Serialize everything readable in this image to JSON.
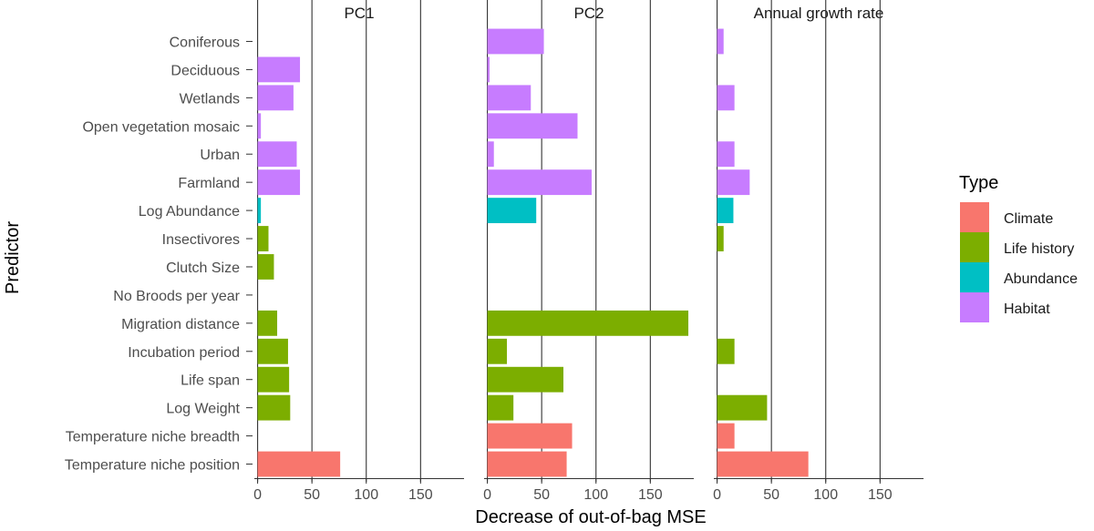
{
  "chart_data": {
    "type": "bar",
    "orientation": "horizontal",
    "facets": [
      "PC1",
      "PC2",
      "Annual growth rate"
    ],
    "xlabel": "Decrease of out-of-bag MSE",
    "ylabel": "Predictor",
    "xlim": [
      -3,
      190
    ],
    "xticks": [
      0,
      50,
      100,
      150
    ],
    "xtick_labels": [
      "0",
      "50",
      "100",
      "150"
    ],
    "legend": {
      "title": "Type",
      "placement": "right",
      "entries": [
        {
          "name": "Climate",
          "color": "#F8766D"
        },
        {
          "name": "Life history",
          "color": "#7CAE00"
        },
        {
          "name": "Abundance",
          "color": "#00BFC4"
        },
        {
          "name": "Habitat",
          "color": "#C77CFF"
        }
      ]
    },
    "predictors": [
      {
        "name": "Coniferous",
        "type": "Habitat"
      },
      {
        "name": "Deciduous",
        "type": "Habitat"
      },
      {
        "name": "Wetlands",
        "type": "Habitat"
      },
      {
        "name": "Open vegetation mosaic",
        "type": "Habitat"
      },
      {
        "name": "Urban",
        "type": "Habitat"
      },
      {
        "name": "Farmland",
        "type": "Habitat"
      },
      {
        "name": "Log Abundance",
        "type": "Abundance"
      },
      {
        "name": "Insectivores",
        "type": "Life history"
      },
      {
        "name": "Clutch Size",
        "type": "Life history"
      },
      {
        "name": "No Broods per year",
        "type": "Life history"
      },
      {
        "name": "Migration distance",
        "type": "Life history"
      },
      {
        "name": "Incubation period",
        "type": "Life history"
      },
      {
        "name": "Life span",
        "type": "Life history"
      },
      {
        "name": "Log Weight",
        "type": "Life history"
      },
      {
        "name": "Temperature niche breadth",
        "type": "Climate"
      },
      {
        "name": "Temperature niche position",
        "type": "Climate"
      }
    ],
    "series": [
      {
        "name": "PC1",
        "values": [
          0,
          39,
          33,
          3,
          36,
          39,
          3,
          10,
          15,
          0,
          18,
          28,
          29,
          30,
          0,
          76
        ]
      },
      {
        "name": "PC2",
        "values": [
          52,
          2,
          40,
          83,
          6,
          96,
          45,
          0,
          0,
          0,
          185,
          18,
          70,
          24,
          78,
          73
        ]
      },
      {
        "name": "Annual growth rate",
        "values": [
          6,
          0,
          16,
          0,
          16,
          30,
          15,
          6,
          0,
          0,
          0,
          16,
          0,
          46,
          16,
          84
        ]
      }
    ]
  }
}
